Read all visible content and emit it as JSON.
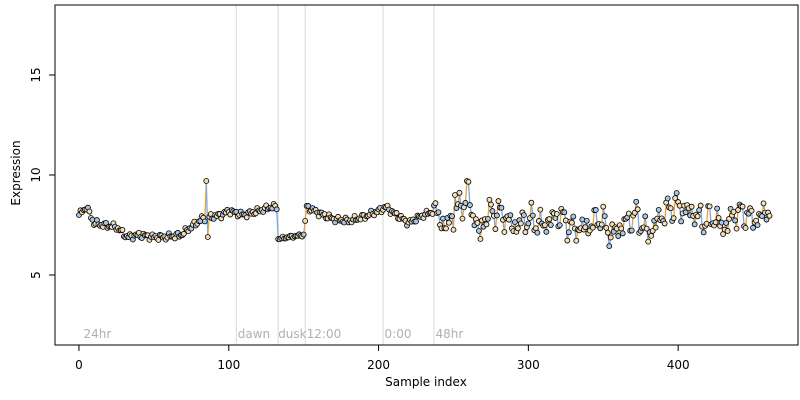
{
  "chart_data": {
    "type": "scatter",
    "xlabel": "Sample index",
    "ylabel": "Expression",
    "xlim": [
      -16,
      480
    ],
    "ylim": [
      1.5,
      18.5
    ],
    "x_ticks": [
      0,
      100,
      200,
      300,
      400
    ],
    "y_ticks": [
      5,
      10,
      15
    ],
    "grid": false,
    "phase_labels": [
      {
        "x": 3,
        "label": "24hr"
      },
      {
        "x": 106,
        "label": "dawn"
      },
      {
        "x": 133,
        "label": "dusk"
      },
      {
        "x": 152,
        "label": "12:00"
      },
      {
        "x": 204,
        "label": "0:00"
      },
      {
        "x": 238,
        "label": "48hr"
      }
    ],
    "dividers": [
      105,
      133,
      151,
      203,
      237
    ],
    "colors": {
      "point_edge": "#000000",
      "point_fill_high": "#f5deb3",
      "point_fill_low": "#a9c8e8",
      "line_up": "#e8a33c",
      "line_down": "#7ea6d8",
      "line_base": "#a0a0a0",
      "divider": "#d8d8d8"
    },
    "anchors": [
      [
        0,
        8.0
      ],
      [
        5,
        8.4
      ],
      [
        10,
        7.6
      ],
      [
        16,
        7.5
      ],
      [
        25,
        7.4
      ],
      [
        32,
        6.9
      ],
      [
        40,
        7.0
      ],
      [
        50,
        6.9
      ],
      [
        58,
        6.9
      ],
      [
        68,
        7.0
      ],
      [
        75,
        7.4
      ],
      [
        82,
        7.8
      ],
      [
        88,
        7.9
      ],
      [
        95,
        8.0
      ],
      [
        100,
        8.2
      ],
      [
        110,
        8.0
      ],
      [
        120,
        8.2
      ],
      [
        128,
        8.4
      ],
      [
        132,
        8.4
      ],
      [
        133,
        6.8
      ],
      [
        140,
        6.9
      ],
      [
        150,
        7.0
      ],
      [
        152,
        8.4
      ],
      [
        160,
        8.1
      ],
      [
        170,
        7.8
      ],
      [
        180,
        7.7
      ],
      [
        190,
        7.9
      ],
      [
        200,
        8.2
      ],
      [
        205,
        8.4
      ],
      [
        210,
        8.1
      ],
      [
        220,
        7.6
      ],
      [
        230,
        8.0
      ],
      [
        237,
        8.2
      ],
      [
        245,
        7.4
      ],
      [
        255,
        8.5
      ],
      [
        260,
        8.9
      ],
      [
        266,
        7.3
      ],
      [
        275,
        8.2
      ],
      [
        283,
        8.0
      ],
      [
        290,
        7.4
      ],
      [
        300,
        7.8
      ],
      [
        310,
        7.5
      ],
      [
        320,
        8.0
      ],
      [
        330,
        7.3
      ],
      [
        340,
        7.4
      ],
      [
        348,
        7.9
      ],
      [
        355,
        7.0
      ],
      [
        365,
        7.6
      ],
      [
        372,
        8.0
      ],
      [
        380,
        7.0
      ],
      [
        388,
        7.9
      ],
      [
        396,
        8.4
      ],
      [
        403,
        8.3
      ],
      [
        410,
        8.1
      ],
      [
        417,
        7.7
      ],
      [
        425,
        7.9
      ],
      [
        430,
        7.3
      ],
      [
        438,
        8.1
      ],
      [
        446,
        8.0
      ],
      [
        452,
        7.7
      ],
      [
        460,
        8.3
      ]
    ],
    "outliers": [
      {
        "x": 85,
        "y": 9.7
      },
      {
        "x": 86,
        "y": 6.9
      },
      {
        "x": 259,
        "y": 9.7
      },
      {
        "x": 399,
        "y": 9.1
      },
      {
        "x": 251,
        "y": 9.0
      },
      {
        "x": 268,
        "y": 6.8
      }
    ]
  }
}
